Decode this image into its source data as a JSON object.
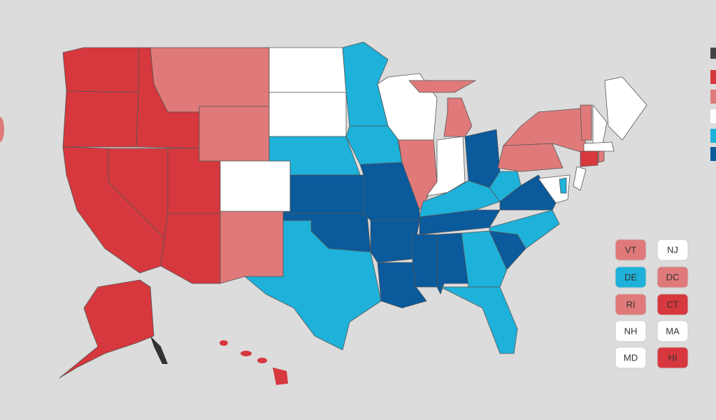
{
  "small_states": [
    {
      "label": "VT",
      "color": "#e07a7a"
    },
    {
      "label": "NJ",
      "color": "#ffffff"
    },
    {
      "label": "DE",
      "color": "#1eb1d9"
    },
    {
      "label": "DC",
      "color": "#e07a7a"
    },
    {
      "label": "RI",
      "color": "#e07a7a"
    },
    {
      "label": "CT",
      "color": "#d6383e"
    },
    {
      "label": "NH",
      "color": "#ffffff"
    },
    {
      "label": "MA",
      "color": "#ffffff"
    },
    {
      "label": "MD",
      "color": "#ffffff"
    },
    {
      "label": "HI",
      "color": "#d6383e"
    }
  ]
}
